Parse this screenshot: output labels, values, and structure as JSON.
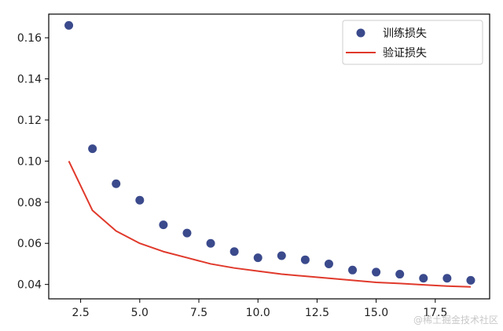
{
  "chart_data": {
    "type": "line",
    "title": "",
    "xlabel": "",
    "ylabel": "",
    "xlim": [
      1.15,
      19.8
    ],
    "ylim": [
      0.033,
      0.1715
    ],
    "x_ticks": [
      2.5,
      5.0,
      7.5,
      10.0,
      12.5,
      15.0,
      17.5
    ],
    "x_tick_labels": [
      "2.5",
      "5.0",
      "7.5",
      "10.0",
      "12.5",
      "15.0",
      "17.5"
    ],
    "y_ticks": [
      0.04,
      0.06,
      0.08,
      0.1,
      0.12,
      0.14,
      0.16
    ],
    "y_tick_labels": [
      "0.04",
      "0.06",
      "0.08",
      "0.10",
      "0.12",
      "0.14",
      "0.16"
    ],
    "grid": false,
    "legend_position": "top-right",
    "series": [
      {
        "name": "训练损失",
        "style": "scatter",
        "color": "#3b4a8c",
        "x": [
          2,
          3,
          4,
          5,
          6,
          7,
          8,
          9,
          10,
          11,
          12,
          13,
          14,
          15,
          16,
          17,
          18,
          19
        ],
        "y": [
          0.166,
          0.106,
          0.089,
          0.081,
          0.069,
          0.065,
          0.06,
          0.056,
          0.053,
          0.054,
          0.052,
          0.05,
          0.047,
          0.046,
          0.045,
          0.043,
          0.043,
          0.042
        ]
      },
      {
        "name": "验证损失",
        "style": "line",
        "color": "#e0392b",
        "x": [
          2,
          3,
          4,
          5,
          6,
          7,
          8,
          9,
          10,
          11,
          12,
          13,
          14,
          15,
          16,
          17,
          18,
          19
        ],
        "y": [
          0.1,
          0.076,
          0.066,
          0.06,
          0.056,
          0.053,
          0.05,
          0.048,
          0.0465,
          0.045,
          0.044,
          0.043,
          0.042,
          0.041,
          0.0405,
          0.0398,
          0.0392,
          0.0388
        ]
      }
    ]
  },
  "watermark": "@稀土掘金技术社区"
}
